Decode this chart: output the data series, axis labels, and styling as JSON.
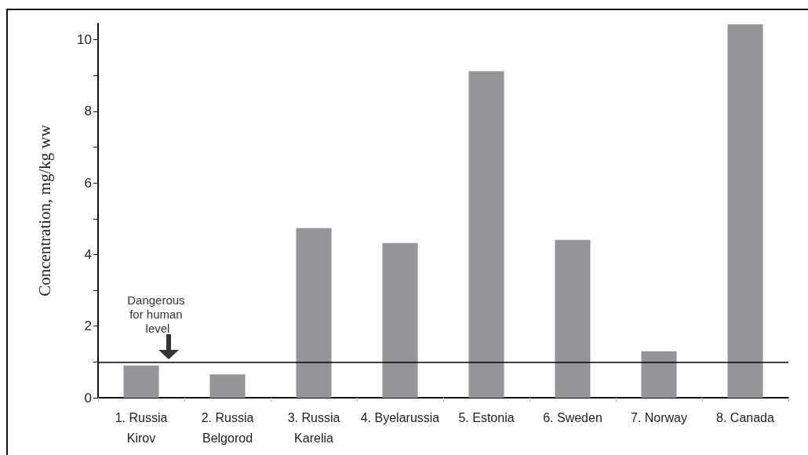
{
  "chart_data": {
    "type": "bar",
    "ylabel": "Concentration, mg/kg ww",
    "categories": [
      "1. Russia\nKirov",
      "2. Russia\nBelgorod",
      "3. Russia\nKarelia",
      "4. Byelarussia",
      "5. Estonia",
      "6. Sweden",
      "7. Norway",
      "8. Canada"
    ],
    "values": [
      0.9,
      0.65,
      4.74,
      4.32,
      9.12,
      4.41,
      1.3,
      10.43
    ],
    "color": "#939598",
    "ylim": [
      0,
      10.45
    ],
    "yticks": [
      0,
      {
        "value": 1,
        "label": null
      },
      2,
      {
        "value": 3,
        "label": null
      },
      4,
      {
        "value": 5,
        "label": null
      },
      6,
      {
        "value": 7,
        "label": null
      },
      8,
      {
        "value": 9,
        "label": null
      },
      10
    ],
    "ref_lines": [
      {
        "axis": "y",
        "value": 1,
        "label": "Dangerous for human level",
        "color": "#000000"
      }
    ],
    "grid": false
  }
}
